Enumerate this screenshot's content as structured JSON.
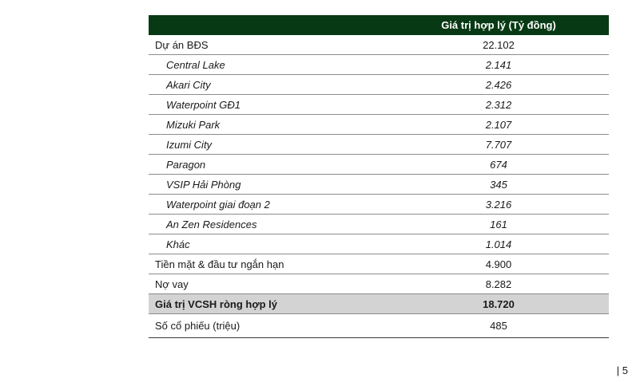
{
  "table": {
    "header": {
      "label": "",
      "value": "Giá trị hợp lý (Tỷ đồng)"
    },
    "rows": [
      {
        "label": "Dự án BĐS",
        "value": "22.102"
      },
      {
        "label": "Central Lake",
        "value": "2.141"
      },
      {
        "label": "Akari City",
        "value": "2.426"
      },
      {
        "label": "Waterpoint GĐ1",
        "value": "2.312"
      },
      {
        "label": "Mizuki Park",
        "value": "2.107"
      },
      {
        "label": "Izumi City",
        "value": "7.707"
      },
      {
        "label": "Paragon",
        "value": "674"
      },
      {
        "label": "VSIP Hải Phòng",
        "value": "345"
      },
      {
        "label": "Waterpoint giai đoạn 2",
        "value": "3.216"
      },
      {
        "label": "An Zen Residences",
        "value": "161"
      },
      {
        "label": "Khác",
        "value": "1.014"
      },
      {
        "label": "Tiền mặt & đầu tư ngắn hạn",
        "value": "4.900"
      },
      {
        "label": "Nợ vay",
        "value": "8.282"
      },
      {
        "label": "Giá trị VCSH ròng hợp lý",
        "value": "18.720"
      },
      {
        "label": "Số cổ phiếu (triệu)",
        "value": "485"
      }
    ]
  },
  "footer": {
    "page_number": "| 5"
  },
  "colors": {
    "header_bg": "#073a14",
    "total_row_bg": "#d3d3d3"
  }
}
